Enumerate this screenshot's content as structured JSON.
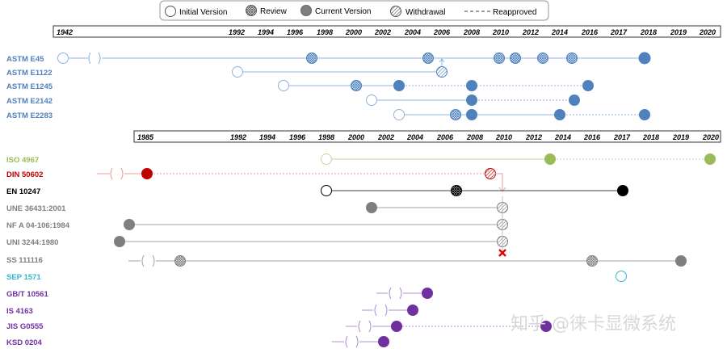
{
  "legend": {
    "initial": "Initial Version",
    "review": "Review",
    "current": "Current Version",
    "withdrawal": "Withdrawal",
    "reapproved": "Reapproved"
  },
  "axis_top": {
    "start": "1942",
    "years": [
      "1992",
      "1994",
      "1996",
      "1998",
      "2000",
      "2002",
      "2004",
      "2006",
      "2008",
      "2010",
      "2012",
      "2014",
      "2016",
      "2017",
      "2018",
      "2019",
      "2020"
    ]
  },
  "axis_bottom": {
    "start": "1985",
    "years": [
      "1992",
      "1994",
      "1996",
      "1998",
      "2000",
      "2002",
      "2004",
      "2006",
      "2008",
      "2010",
      "2012",
      "2014",
      "2016",
      "2017",
      "2018",
      "2019",
      "2020"
    ]
  },
  "colors": {
    "astm": "#4f81bd",
    "iso": "#9bbb59",
    "din": "#c00000",
    "en": "#000000",
    "grey": "#7f7f7f",
    "sep": "#31b5d1",
    "purple": "#7030a0"
  },
  "standards": [
    {
      "label": "ASTM E45",
      "color": "#4f81bd"
    },
    {
      "label": "ASTM E1122",
      "color": "#4f81bd"
    },
    {
      "label": "ASTM E1245",
      "color": "#4f81bd"
    },
    {
      "label": "ASTM E2142",
      "color": "#4f81bd"
    },
    {
      "label": "ASTM E2283",
      "color": "#4f81bd"
    },
    {
      "label": "ISO 4967",
      "color": "#9bbb59"
    },
    {
      "label": "DIN 50602",
      "color": "#c00000"
    },
    {
      "label": "EN 10247",
      "color": "#000000"
    },
    {
      "label": "UNE 36431:2001",
      "color": "#7f7f7f"
    },
    {
      "label": "NF A 04-106:1984",
      "color": "#7f7f7f"
    },
    {
      "label": "UNI 3244:1980",
      "color": "#7f7f7f"
    },
    {
      "label": "SS 111116",
      "color": "#7f7f7f"
    },
    {
      "label": "SEP 1571",
      "color": "#31b5d1"
    },
    {
      "label": "GB/T 10561",
      "color": "#7030a0"
    },
    {
      "label": "IS 4163",
      "color": "#7030a0"
    },
    {
      "label": "JIS G0555",
      "color": "#7030a0"
    },
    {
      "label": "KSD 0204",
      "color": "#7030a0"
    }
  ],
  "watermark": "知乎 @徕卡显微系统"
}
